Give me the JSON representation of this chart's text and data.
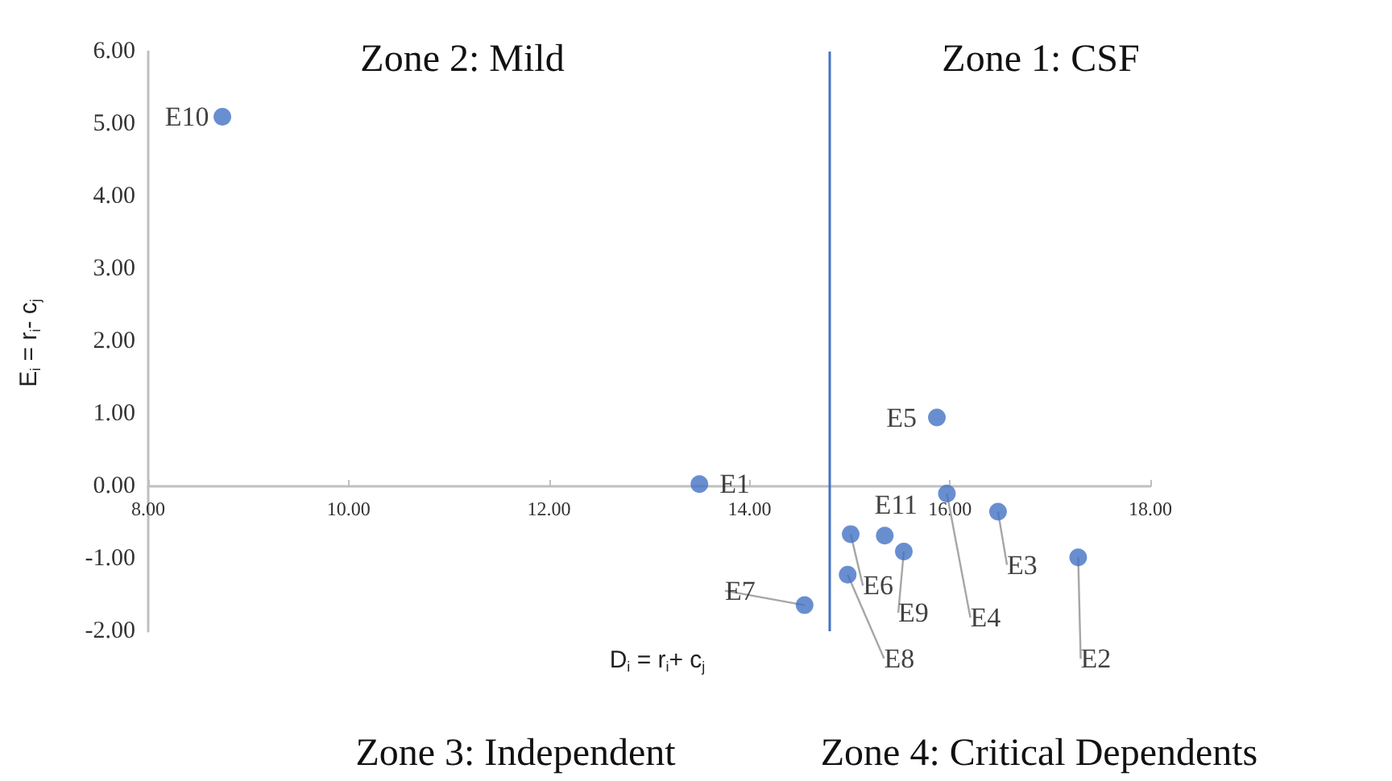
{
  "chart_data": {
    "type": "scatter",
    "xlabel": "D$_{i}$ = r$_{i}$+ c$_{j}$",
    "ylabel": "E$_{i}$ = r$_{i}$- c$_{j}$",
    "x": [
      13.5,
      17.28,
      16.48,
      15.97,
      15.87,
      15.01,
      14.55,
      14.98,
      15.54,
      8.74,
      15.35
    ],
    "values": [
      0.03,
      -0.98,
      -0.35,
      -0.1,
      0.95,
      -0.66,
      -1.64,
      -1.22,
      -0.9,
      5.1,
      -0.68
    ],
    "color": "#4472c4",
    "marker": "circle",
    "xlim": [
      8,
      18
    ],
    "ylim": [
      -2,
      6
    ],
    "xticks": [
      {
        "value": 8,
        "label": "8.00"
      },
      {
        "value": 10,
        "label": "10.00"
      },
      {
        "value": 12,
        "label": "12.00"
      },
      {
        "value": 14,
        "label": "14.00"
      },
      {
        "value": 16,
        "label": "16.00"
      },
      {
        "value": 18,
        "label": "18.00"
      }
    ],
    "yticks": [
      {
        "value": -2,
        "label": "-2.00"
      },
      {
        "value": -1,
        "label": "-1.00"
      },
      {
        "value": 0,
        "label": "0.00"
      },
      {
        "value": 1,
        "label": "1.00"
      },
      {
        "value": 2,
        "label": "2.00"
      },
      {
        "value": 3,
        "label": "3.00"
      },
      {
        "value": 4,
        "label": "4.00"
      },
      {
        "value": 5,
        "label": "5.00"
      },
      {
        "value": 6,
        "label": "6.00"
      }
    ],
    "grid": false,
    "ref_lines": [
      {
        "axis": "x",
        "value": 14.8,
        "color": "#4472c4"
      }
    ],
    "annotations": [
      {
        "text": "E1",
        "x": 13.5,
        "y": 0.03
      },
      {
        "text": "E2",
        "x": 17.28,
        "y": -0.98
      },
      {
        "text": "E3",
        "x": 16.48,
        "y": -0.35
      },
      {
        "text": "E4",
        "x": 15.97,
        "y": -0.1
      },
      {
        "text": "E5",
        "x": 15.87,
        "y": 0.95
      },
      {
        "text": "E6",
        "x": 15.01,
        "y": -0.66
      },
      {
        "text": "E7",
        "x": 14.55,
        "y": -1.64
      },
      {
        "text": "E8",
        "x": 14.98,
        "y": -1.22
      },
      {
        "text": "E9",
        "x": 15.54,
        "y": -0.9
      },
      {
        "text": "E10",
        "x": 8.74,
        "y": 5.1
      },
      {
        "text": "E11",
        "x": 15.35,
        "y": -0.68
      },
      "Zone 2: Mild",
      "Zone 1: CSF",
      "Zone 3: Independent",
      "Zone 4: Critical Dependents"
    ]
  }
}
